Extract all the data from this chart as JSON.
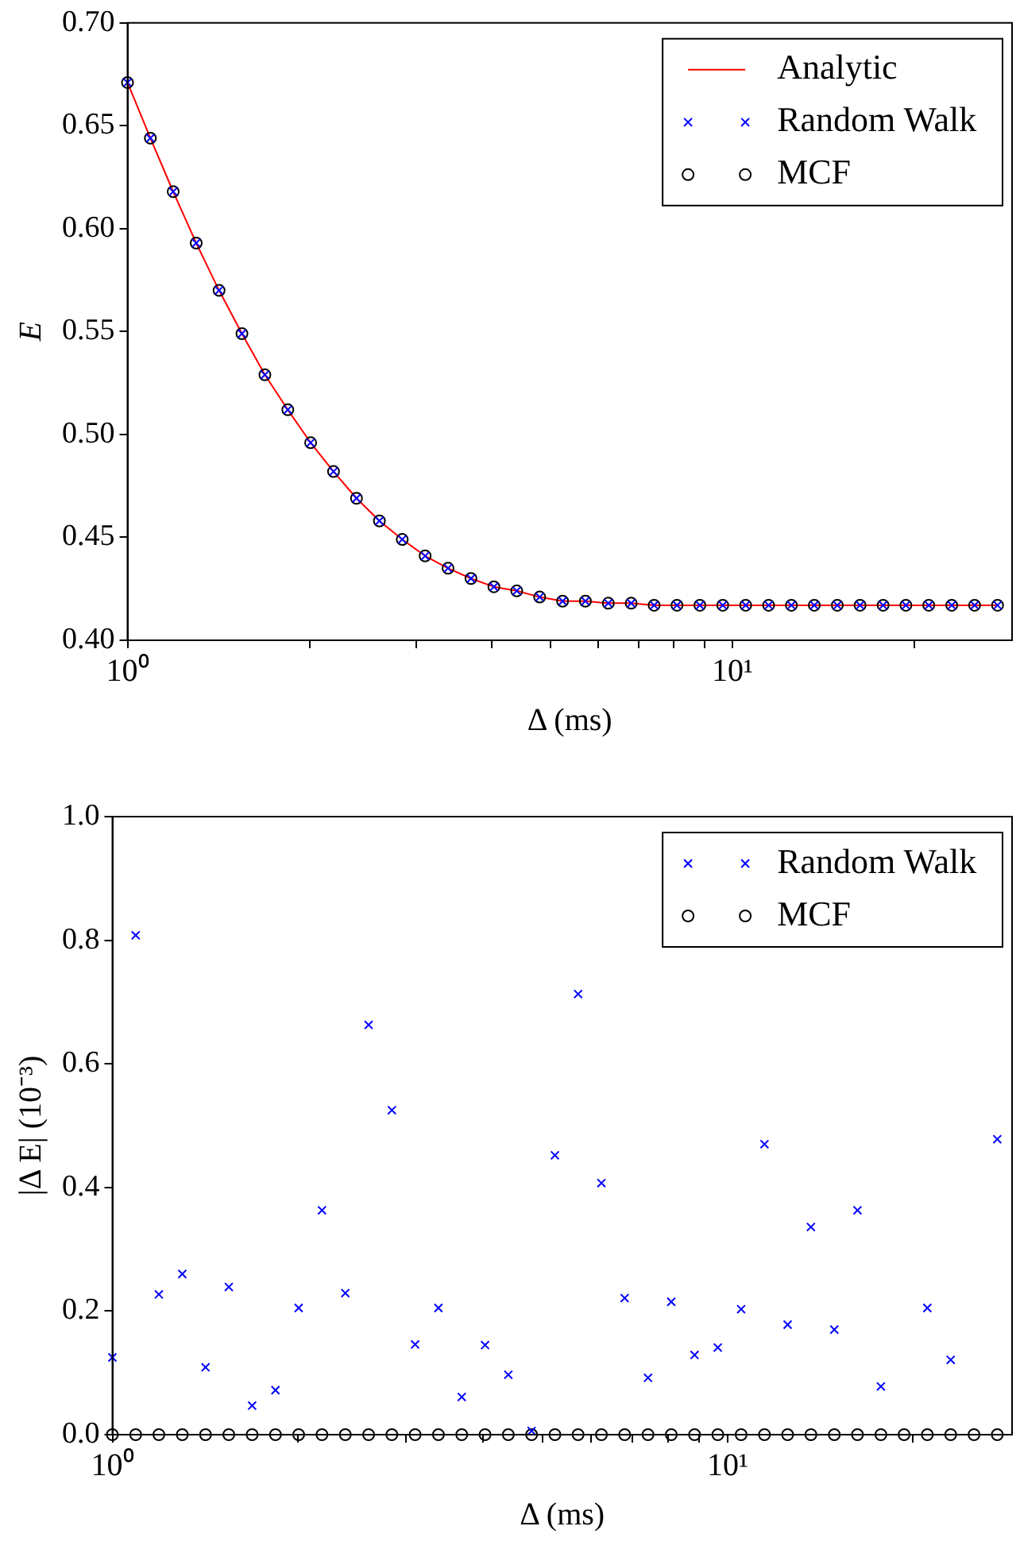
{
  "chart_data": [
    {
      "type": "line",
      "xlabel": "Δ (ms)",
      "ylabel": "E",
      "log": "x",
      "grid": false,
      "legend": "top right",
      "x": [
        1,
        1.091,
        1.19,
        1.299,
        1.417,
        1.546,
        1.687,
        1.841,
        2.008,
        2.191,
        2.391,
        2.609,
        2.846,
        3.105,
        3.388,
        3.697,
        4.034,
        4.401,
        4.802,
        5.24,
        5.715,
        6.236,
        6.803,
        7.424,
        8.099,
        8.837,
        9.641,
        10.52,
        11.48,
        12.52,
        13.66,
        14.91,
        16.26,
        17.75,
        19.36,
        21.12,
        23.05,
        25.15,
        27.44
      ],
      "xlim": [
        1,
        29
      ],
      "xticks": [
        {
          "value": 1,
          "label": "10⁰"
        },
        {
          "value": 2,
          "label": null
        },
        {
          "value": 3,
          "label": null
        },
        {
          "value": 4,
          "label": null
        },
        {
          "value": 5,
          "label": null
        },
        {
          "value": 6,
          "label": null
        },
        {
          "value": 7,
          "label": null
        },
        {
          "value": 8,
          "label": null
        },
        {
          "value": 9,
          "label": null
        },
        {
          "value": 10,
          "label": "10¹"
        },
        {
          "value": 20,
          "label": null
        }
      ],
      "ylim": [
        0.4,
        0.7
      ],
      "yticks": [
        {
          "value": 0.4,
          "label": "0.40"
        },
        {
          "value": 0.45,
          "label": "0.45"
        },
        {
          "value": 0.5,
          "label": "0.50"
        },
        {
          "value": 0.55,
          "label": "0.55"
        },
        {
          "value": 0.6,
          "label": "0.60"
        },
        {
          "value": 0.65,
          "label": "0.65"
        },
        {
          "value": 0.7,
          "label": "0.70"
        }
      ],
      "series": [
        {
          "name": "Analytic",
          "type": "line",
          "color": "#ff0000",
          "marker": "none",
          "line_style": "solid",
          "values": [
            0.671,
            0.644,
            0.618,
            0.593,
            0.57,
            0.549,
            0.529,
            0.512,
            0.496,
            0.482,
            0.469,
            0.458,
            0.449,
            0.441,
            0.435,
            0.43,
            0.426,
            0.424,
            0.421,
            0.419,
            0.419,
            0.418,
            0.418,
            0.417,
            0.417,
            0.417,
            0.417,
            0.417,
            0.417,
            0.417,
            0.417,
            0.417,
            0.417,
            0.417,
            0.417,
            0.417,
            0.417,
            0.417,
            0.417
          ]
        },
        {
          "name": "Random Walk",
          "type": "scatter",
          "color": "#0000ff",
          "marker": "cross",
          "values": [
            0.671,
            0.644,
            0.618,
            0.593,
            0.57,
            0.549,
            0.529,
            0.512,
            0.496,
            0.482,
            0.469,
            0.458,
            0.449,
            0.441,
            0.435,
            0.43,
            0.426,
            0.424,
            0.421,
            0.419,
            0.419,
            0.418,
            0.418,
            0.417,
            0.417,
            0.417,
            0.417,
            0.417,
            0.417,
            0.417,
            0.417,
            0.417,
            0.417,
            0.417,
            0.417,
            0.417,
            0.417,
            0.417,
            0.417
          ]
        },
        {
          "name": "MCF",
          "type": "scatter",
          "color": "#000000",
          "marker": "circle",
          "values": [
            0.671,
            0.644,
            0.618,
            0.593,
            0.57,
            0.549,
            0.529,
            0.512,
            0.496,
            0.482,
            0.469,
            0.458,
            0.449,
            0.441,
            0.435,
            0.43,
            0.426,
            0.424,
            0.421,
            0.419,
            0.419,
            0.418,
            0.418,
            0.417,
            0.417,
            0.417,
            0.417,
            0.417,
            0.417,
            0.417,
            0.417,
            0.417,
            0.417,
            0.417,
            0.417,
            0.417,
            0.417,
            0.417,
            0.417
          ]
        }
      ]
    },
    {
      "type": "scatter",
      "xlabel": "Δ (ms)",
      "ylabel": "|Δ E| (10⁻³)",
      "log": "x",
      "grid": false,
      "legend": "top right",
      "x": [
        1,
        1.091,
        1.19,
        1.299,
        1.417,
        1.546,
        1.687,
        1.841,
        2.008,
        2.191,
        2.391,
        2.609,
        2.846,
        3.105,
        3.388,
        3.697,
        4.034,
        4.401,
        4.802,
        5.24,
        5.715,
        6.236,
        6.803,
        7.424,
        8.099,
        8.837,
        9.641,
        10.52,
        11.48,
        12.52,
        13.66,
        14.91,
        16.26,
        17.75,
        19.36,
        21.12,
        23.05,
        25.15,
        27.44
      ],
      "xlim": [
        1,
        29
      ],
      "xticks": [
        {
          "value": 1,
          "label": "10⁰"
        },
        {
          "value": 2,
          "label": null
        },
        {
          "value": 3,
          "label": null
        },
        {
          "value": 4,
          "label": null
        },
        {
          "value": 5,
          "label": null
        },
        {
          "value": 6,
          "label": null
        },
        {
          "value": 7,
          "label": null
        },
        {
          "value": 8,
          "label": null
        },
        {
          "value": 9,
          "label": null
        },
        {
          "value": 10,
          "label": "10¹"
        },
        {
          "value": 20,
          "label": null
        }
      ],
      "ylim": [
        0,
        1
      ],
      "yticks": [
        {
          "value": 0,
          "label": "0.0"
        },
        {
          "value": 0.2,
          "label": "0.2"
        },
        {
          "value": 0.4,
          "label": "0.4"
        },
        {
          "value": 0.6,
          "label": "0.6"
        },
        {
          "value": 0.8,
          "label": "0.8"
        },
        {
          "value": 1,
          "label": "1.0"
        }
      ],
      "series": [
        {
          "name": "Random Walk",
          "color": "#0000ff",
          "marker": "cross",
          "values": [
            0.125,
            0.808,
            0.227,
            0.26,
            0.109,
            0.239,
            0.047,
            0.072,
            0.205,
            0.363,
            0.229,
            0.663,
            0.525,
            0.146,
            0.205,
            0.061,
            0.145,
            0.097,
            0.006,
            0.452,
            0.713,
            0.407,
            0.221,
            0.092,
            0.215,
            0.129,
            0.141,
            0.203,
            0.47,
            0.178,
            0.336,
            0.17,
            0.363,
            0.078,
            null,
            0.205,
            0.121,
            null,
            0.478
          ]
        },
        {
          "name": "MCF",
          "color": "#000000",
          "marker": "circle",
          "values": [
            0,
            0,
            0,
            0,
            0,
            0,
            0,
            0,
            0,
            0,
            0,
            0,
            0,
            0,
            0,
            0,
            0,
            0,
            0,
            0,
            0,
            0,
            0,
            0,
            0,
            0,
            0,
            0,
            0,
            0,
            0,
            0,
            0,
            0,
            0,
            0,
            0,
            0,
            0
          ]
        }
      ]
    }
  ]
}
